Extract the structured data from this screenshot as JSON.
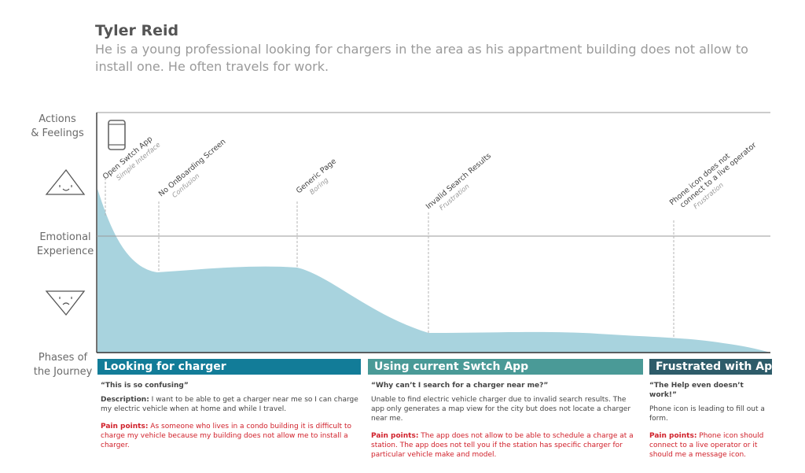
{
  "persona": {
    "name": "Tyler Reid",
    "description": "He is a young professional looking for chargers in the area as his appartment building does not allow to install one. He often travels for work."
  },
  "side_labels": {
    "actions": [
      "Actions",
      "& Feelings"
    ],
    "emotional": [
      "Emotional",
      "Experience"
    ],
    "phases": [
      "Phases of",
      "the Journey"
    ]
  },
  "touchpoints": [
    {
      "action": "Open Swtch App",
      "feeling": "Simple Interface"
    },
    {
      "action": "No OnBoarding Screen",
      "feeling": "Confusion"
    },
    {
      "action": "Generic Page",
      "feeling": "Boring"
    },
    {
      "action": "Invalid Search Results",
      "feeling": "Frustration"
    },
    {
      "action": "Phone icon does not",
      "action2": "connect to a live operator",
      "feeling": "Frustration"
    }
  ],
  "phases": [
    {
      "title": "Looking for charger",
      "color": "#127c98",
      "quote": "“This is so confusing”",
      "desc_label": "Description:",
      "desc": " I want to be able to get a charger near me so I can charge my electric vehicle when at home and while I travel.",
      "pain_label": "Pain points:",
      "pain": " As someone who lives in a condo building it is difficult to charge my vehicle because my building does not allow me to install a charger."
    },
    {
      "title": "Using current Swtch App",
      "color": "#4a9a97",
      "quote": "“Why can’t I search for a charger near me?”",
      "desc_label": "",
      "desc": "Unable to find electric vehicle charger due to invalid search results. The app only generates a map view for the city but does not locate a charger near me.",
      "pain_label": "Pain points:",
      "pain": " The app does not allow to be able to schedule a charge at a station. The app does not tell you if the station has specific charger for particular vehicle make and model."
    },
    {
      "title": "Frustrated with App",
      "color": "#2e5c6a",
      "quote": "“The Help even doesn’t work!”",
      "desc_label": "",
      "desc": "Phone icon is leading to fill out a form.",
      "pain_label": "Pain points:",
      "pain": "  Phone icon should connect to a live operator or it should me a message icon."
    }
  ],
  "colors": {
    "curve_fill": "#a8d3de",
    "frame_line": "#9a9a9a",
    "pain_text": "#d0202a"
  }
}
